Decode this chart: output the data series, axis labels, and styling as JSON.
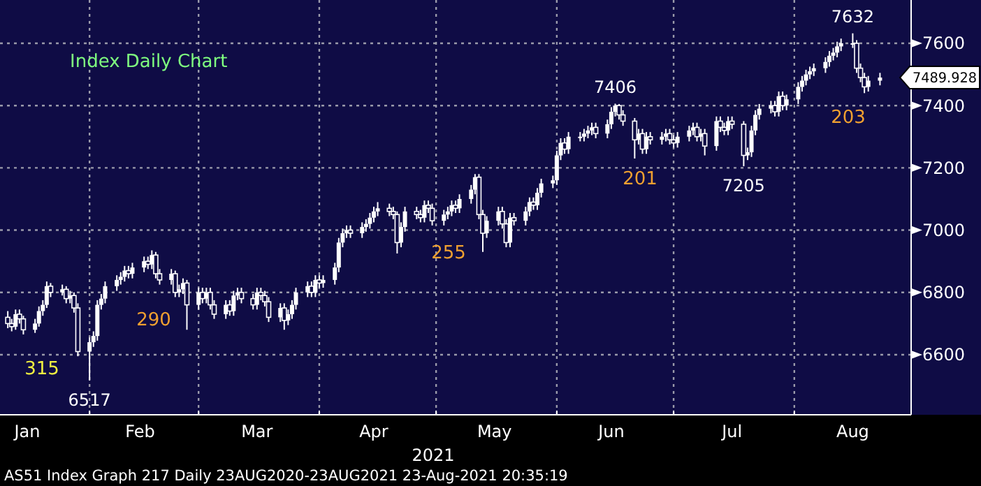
{
  "chart_data": {
    "type": "candlestick",
    "title": "Index Daily Chart",
    "xlabel": "2021",
    "color": "#ffffff",
    "x": [
      "2021-01-11",
      "2021-01-12",
      "2021-01-13",
      "2021-01-14",
      "2021-01-15",
      "2021-01-18",
      "2021-01-19",
      "2021-01-20",
      "2021-01-21",
      "2021-01-22",
      "2021-01-25",
      "2021-01-26",
      "2021-01-27",
      "2021-01-28",
      "2021-01-29",
      "2021-02-01",
      "2021-02-02",
      "2021-02-03",
      "2021-02-04",
      "2021-02-05",
      "2021-02-08",
      "2021-02-09",
      "2021-02-10",
      "2021-02-11",
      "2021-02-12",
      "2021-02-15",
      "2021-02-16",
      "2021-02-17",
      "2021-02-18",
      "2021-02-19",
      "2021-02-22",
      "2021-02-23",
      "2021-02-24",
      "2021-02-25",
      "2021-02-26",
      "2021-03-01",
      "2021-03-02",
      "2021-03-03",
      "2021-03-04",
      "2021-03-05",
      "2021-03-08",
      "2021-03-09",
      "2021-03-10",
      "2021-03-11",
      "2021-03-12",
      "2021-03-15",
      "2021-03-16",
      "2021-03-17",
      "2021-03-18",
      "2021-03-19",
      "2021-03-22",
      "2021-03-23",
      "2021-03-24",
      "2021-03-25",
      "2021-03-26",
      "2021-03-29",
      "2021-03-30",
      "2021-03-31",
      "2021-04-01",
      "2021-04-02",
      "2021-04-05",
      "2021-04-06",
      "2021-04-07",
      "2021-04-08",
      "2021-04-09",
      "2021-04-12",
      "2021-04-13",
      "2021-04-14",
      "2021-04-15",
      "2021-04-16",
      "2021-04-19",
      "2021-04-20",
      "2021-04-21",
      "2021-04-22",
      "2021-04-23",
      "2021-04-26",
      "2021-04-27",
      "2021-04-28",
      "2021-04-29",
      "2021-04-30",
      "2021-05-03",
      "2021-05-04",
      "2021-05-05",
      "2021-05-06",
      "2021-05-07",
      "2021-05-10",
      "2021-05-11",
      "2021-05-12",
      "2021-05-13",
      "2021-05-14",
      "2021-05-17",
      "2021-05-18",
      "2021-05-19",
      "2021-05-20",
      "2021-05-21",
      "2021-05-24",
      "2021-05-25",
      "2021-05-26",
      "2021-05-27",
      "2021-05-28",
      "2021-05-31",
      "2021-06-01",
      "2021-06-02",
      "2021-06-03",
      "2021-06-04",
      "2021-06-07",
      "2021-06-08",
      "2021-06-09",
      "2021-06-10",
      "2021-06-11",
      "2021-06-14",
      "2021-06-15",
      "2021-06-16",
      "2021-06-17",
      "2021-06-18",
      "2021-06-21",
      "2021-06-22",
      "2021-06-23",
      "2021-06-24",
      "2021-06-25",
      "2021-06-28",
      "2021-06-29",
      "2021-06-30",
      "2021-07-01",
      "2021-07-02",
      "2021-07-05",
      "2021-07-06",
      "2021-07-07",
      "2021-07-08",
      "2021-07-09",
      "2021-07-12",
      "2021-07-13",
      "2021-07-14",
      "2021-07-15",
      "2021-07-16",
      "2021-07-19",
      "2021-07-20",
      "2021-07-21",
      "2021-07-22",
      "2021-07-23",
      "2021-07-26",
      "2021-07-27",
      "2021-07-28",
      "2021-07-29",
      "2021-07-30",
      "2021-08-02",
      "2021-08-03",
      "2021-08-04",
      "2021-08-05",
      "2021-08-06",
      "2021-08-09",
      "2021-08-10",
      "2021-08-11",
      "2021-08-12",
      "2021-08-13",
      "2021-08-16",
      "2021-08-17",
      "2021-08-18",
      "2021-08-19",
      "2021-08-20",
      "2021-08-23"
    ],
    "ohlc": [
      [
        6720,
        6740,
        6685,
        6700
      ],
      [
        6700,
        6715,
        6675,
        6690
      ],
      [
        6690,
        6745,
        6680,
        6730
      ],
      [
        6730,
        6745,
        6700,
        6715
      ],
      [
        6715,
        6725,
        6665,
        6680
      ],
      [
        6680,
        6715,
        6670,
        6700
      ],
      [
        6700,
        6755,
        6690,
        6740
      ],
      [
        6740,
        6775,
        6725,
        6760
      ],
      [
        6760,
        6835,
        6750,
        6820
      ],
      [
        6820,
        6830,
        6785,
        6800
      ],
      [
        6800,
        6825,
        6790,
        6810
      ],
      [
        6810,
        6820,
        6765,
        6780
      ],
      [
        6780,
        6805,
        6765,
        6790
      ],
      [
        6790,
        6800,
        6735,
        6750
      ],
      [
        6750,
        6765,
        6595,
        6610
      ],
      [
        6610,
        6655,
        6517,
        6640
      ],
      [
        6640,
        6675,
        6625,
        6660
      ],
      [
        6660,
        6775,
        6645,
        6760
      ],
      [
        6760,
        6795,
        6745,
        6780
      ],
      [
        6780,
        6835,
        6765,
        6820
      ],
      [
        6820,
        6855,
        6805,
        6840
      ],
      [
        6840,
        6865,
        6825,
        6850
      ],
      [
        6850,
        6885,
        6835,
        6870
      ],
      [
        6870,
        6885,
        6845,
        6860
      ],
      [
        6860,
        6895,
        6845,
        6880
      ],
      [
        6880,
        6915,
        6865,
        6900
      ],
      [
        6900,
        6915,
        6875,
        6890
      ],
      [
        6890,
        6935,
        6875,
        6920
      ],
      [
        6920,
        6930,
        6845,
        6860
      ],
      [
        6860,
        6875,
        6825,
        6840
      ],
      [
        6840,
        6875,
        6825,
        6860
      ],
      [
        6860,
        6870,
        6785,
        6800
      ],
      [
        6800,
        6825,
        6785,
        6810
      ],
      [
        6810,
        6845,
        6795,
        6830
      ],
      [
        6830,
        6840,
        6680,
        6760
      ],
      [
        6760,
        6815,
        6745,
        6800
      ],
      [
        6800,
        6815,
        6765,
        6780
      ],
      [
        6780,
        6815,
        6765,
        6800
      ],
      [
        6800,
        6815,
        6745,
        6760
      ],
      [
        6760,
        6775,
        6715,
        6730
      ],
      [
        6730,
        6775,
        6715,
        6760
      ],
      [
        6760,
        6775,
        6725,
        6740
      ],
      [
        6740,
        6805,
        6725,
        6790
      ],
      [
        6790,
        6815,
        6775,
        6800
      ],
      [
        6800,
        6815,
        6765,
        6780
      ],
      [
        6780,
        6795,
        6745,
        6760
      ],
      [
        6760,
        6815,
        6745,
        6800
      ],
      [
        6800,
        6815,
        6775,
        6790
      ],
      [
        6790,
        6805,
        6755,
        6770
      ],
      [
        6770,
        6785,
        6705,
        6720
      ],
      [
        6720,
        6765,
        6705,
        6750
      ],
      [
        6750,
        6765,
        6680,
        6710
      ],
      [
        6710,
        6745,
        6695,
        6730
      ],
      [
        6730,
        6775,
        6715,
        6760
      ],
      [
        6760,
        6815,
        6745,
        6800
      ],
      [
        6800,
        6835,
        6785,
        6820
      ],
      [
        6820,
        6835,
        6785,
        6800
      ],
      [
        6800,
        6855,
        6785,
        6840
      ],
      [
        6840,
        6855,
        6815,
        6830
      ],
      [
        6830,
        6855,
        6815,
        6840
      ],
      [
        6840,
        6895,
        6825,
        6880
      ],
      [
        6880,
        6975,
        6865,
        6960
      ],
      [
        6960,
        7005,
        6945,
        6990
      ],
      [
        6990,
        7015,
        6975,
        7000
      ],
      [
        7000,
        7015,
        6975,
        6990
      ],
      [
        6990,
        7025,
        6975,
        7010
      ],
      [
        7010,
        7035,
        6995,
        7020
      ],
      [
        7020,
        7055,
        7005,
        7040
      ],
      [
        7040,
        7075,
        7025,
        7060
      ],
      [
        7060,
        7090,
        7045,
        7070
      ],
      [
        7070,
        7085,
        7045,
        7060
      ],
      [
        7060,
        7075,
        7035,
        7050
      ],
      [
        7050,
        7060,
        6925,
        6960
      ],
      [
        6960,
        7025,
        6945,
        7010
      ],
      [
        7010,
        7075,
        6995,
        7060
      ],
      [
        7060,
        7075,
        7035,
        7050
      ],
      [
        7050,
        7065,
        7025,
        7040
      ],
      [
        7040,
        7095,
        7025,
        7080
      ],
      [
        7080,
        7095,
        7055,
        7070
      ],
      [
        7070,
        7085,
        7015,
        7030
      ],
      [
        7030,
        7065,
        7015,
        7050
      ],
      [
        7050,
        7075,
        7035,
        7060
      ],
      [
        7060,
        7095,
        7045,
        7080
      ],
      [
        7080,
        7095,
        7055,
        7070
      ],
      [
        7070,
        7115,
        7055,
        7100
      ],
      [
        7100,
        7145,
        7085,
        7130
      ],
      [
        7130,
        7180,
        7115,
        7170
      ],
      [
        7170,
        7180,
        7035,
        7050
      ],
      [
        7050,
        7065,
        6930,
        6990
      ],
      [
        6990,
        7045,
        6975,
        7030
      ],
      [
        7030,
        7075,
        7015,
        7060
      ],
      [
        7060,
        7075,
        7005,
        7020
      ],
      [
        7020,
        7035,
        6945,
        6960
      ],
      [
        6960,
        7055,
        6945,
        7040
      ],
      [
        7040,
        7055,
        7015,
        7030
      ],
      [
        7030,
        7075,
        7015,
        7060
      ],
      [
        7060,
        7105,
        7045,
        7090
      ],
      [
        7090,
        7105,
        7065,
        7080
      ],
      [
        7080,
        7135,
        7065,
        7120
      ],
      [
        7120,
        7165,
        7105,
        7150
      ],
      [
        7150,
        7175,
        7135,
        7160
      ],
      [
        7160,
        7255,
        7145,
        7240
      ],
      [
        7240,
        7295,
        7225,
        7280
      ],
      [
        7280,
        7295,
        7245,
        7260
      ],
      [
        7260,
        7315,
        7245,
        7300
      ],
      [
        7300,
        7315,
        7285,
        7300
      ],
      [
        7300,
        7325,
        7285,
        7310
      ],
      [
        7310,
        7335,
        7295,
        7320
      ],
      [
        7320,
        7345,
        7305,
        7330
      ],
      [
        7330,
        7345,
        7295,
        7310
      ],
      [
        7310,
        7355,
        7295,
        7340
      ],
      [
        7340,
        7395,
        7325,
        7380
      ],
      [
        7380,
        7406,
        7365,
        7400
      ],
      [
        7400,
        7405,
        7355,
        7370
      ],
      [
        7370,
        7385,
        7335,
        7350
      ],
      [
        7350,
        7360,
        7230,
        7290
      ],
      [
        7290,
        7325,
        7275,
        7310
      ],
      [
        7310,
        7325,
        7245,
        7260
      ],
      [
        7260,
        7315,
        7245,
        7300
      ],
      [
        7300,
        7315,
        7275,
        7290
      ],
      [
        7290,
        7315,
        7275,
        7300
      ],
      [
        7300,
        7325,
        7285,
        7310
      ],
      [
        7310,
        7325,
        7275,
        7290
      ],
      [
        7290,
        7305,
        7265,
        7280
      ],
      [
        7280,
        7315,
        7265,
        7300
      ],
      [
        7300,
        7335,
        7285,
        7320
      ],
      [
        7320,
        7345,
        7305,
        7330
      ],
      [
        7330,
        7345,
        7285,
        7300
      ],
      [
        7300,
        7325,
        7285,
        7310
      ],
      [
        7310,
        7325,
        7240,
        7270
      ],
      [
        7270,
        7365,
        7255,
        7350
      ],
      [
        7350,
        7365,
        7315,
        7330
      ],
      [
        7330,
        7345,
        7305,
        7320
      ],
      [
        7320,
        7365,
        7305,
        7350
      ],
      [
        7350,
        7365,
        7325,
        7340
      ],
      [
        7340,
        7350,
        7205,
        7240
      ],
      [
        7240,
        7265,
        7225,
        7250
      ],
      [
        7250,
        7335,
        7235,
        7320
      ],
      [
        7320,
        7385,
        7305,
        7370
      ],
      [
        7370,
        7405,
        7355,
        7390
      ],
      [
        7390,
        7415,
        7375,
        7400
      ],
      [
        7400,
        7415,
        7365,
        7380
      ],
      [
        7380,
        7445,
        7365,
        7430
      ],
      [
        7430,
        7445,
        7385,
        7400
      ],
      [
        7400,
        7435,
        7385,
        7420
      ],
      [
        7420,
        7475,
        7405,
        7460
      ],
      [
        7460,
        7495,
        7445,
        7480
      ],
      [
        7480,
        7515,
        7465,
        7500
      ],
      [
        7500,
        7525,
        7485,
        7510
      ],
      [
        7510,
        7535,
        7495,
        7520
      ],
      [
        7520,
        7555,
        7505,
        7540
      ],
      [
        7540,
        7575,
        7525,
        7560
      ],
      [
        7560,
        7585,
        7545,
        7570
      ],
      [
        7570,
        7605,
        7555,
        7590
      ],
      [
        7590,
        7615,
        7575,
        7600
      ],
      [
        7600,
        7632,
        7585,
        7600
      ],
      [
        7600,
        7610,
        7505,
        7520
      ],
      [
        7520,
        7535,
        7475,
        7490
      ],
      [
        7490,
        7505,
        7440,
        7460
      ],
      [
        7460,
        7495,
        7445,
        7480
      ],
      [
        7480,
        7505,
        7465,
        7489.928
      ]
    ],
    "xlim": [
      "2021-01-09",
      "2021-08-31"
    ],
    "xticks": [
      {
        "value": "2021-01-16",
        "label": "Jan"
      },
      {
        "value": "2021-02-01",
        "label": null
      },
      {
        "value": "2021-02-14",
        "label": "Feb"
      },
      {
        "value": "2021-03-01",
        "label": null
      },
      {
        "value": "2021-03-16",
        "label": "Mar"
      },
      {
        "value": "2021-04-01",
        "label": null
      },
      {
        "value": "2021-04-15",
        "label": "Apr"
      },
      {
        "value": "2021-05-01",
        "label": null
      },
      {
        "value": "2021-05-16",
        "label": "May"
      },
      {
        "value": "2021-06-01",
        "label": null
      },
      {
        "value": "2021-06-15",
        "label": "Jun"
      },
      {
        "value": "2021-07-01",
        "label": null
      },
      {
        "value": "2021-07-16",
        "label": "Jul"
      },
      {
        "value": "2021-08-01",
        "label": null
      },
      {
        "value": "2021-08-16",
        "label": "Aug"
      }
    ],
    "ylim": [
      6407,
      7739
    ],
    "yticks": [
      6600,
      6800,
      7000,
      7200,
      7400,
      7600
    ],
    "grid": true,
    "annotations": [
      "315",
      {
        "text": "6517",
        "x": "2021-02-01",
        "y": 6517
      },
      "290",
      "255",
      {
        "text": "7406",
        "x": "2021-06-16",
        "y": 7406
      },
      "201",
      {
        "text": "7205",
        "x": "2021-07-19",
        "y": 7205
      },
      {
        "text": "7632",
        "x": "2021-08-16",
        "y": 7632
      },
      "203",
      {
        "text": "7489.928",
        "x": "2021-08-23",
        "y": 7489.928
      },
      "AS51 Index Graph 217  Daily 23AUG2020-23AUG2021  23-Aug-2021 20:35:19"
    ]
  }
}
